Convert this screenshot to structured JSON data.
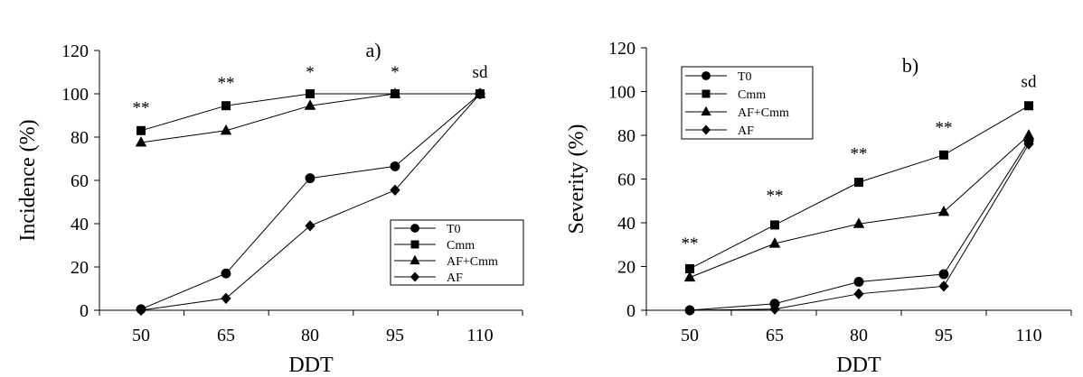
{
  "chart_data": [
    {
      "type": "line",
      "panel_label": "a)",
      "xlabel": "DDT",
      "ylabel": "Incidence (%)",
      "categories": [
        "50",
        "65",
        "80",
        "95",
        "110"
      ],
      "ylim": [
        0,
        120
      ],
      "yticks": [
        "0",
        "20",
        "40",
        "60",
        "80",
        "100",
        "120"
      ],
      "legend_position": "bottom-right",
      "series": [
        {
          "name": "T0",
          "marker": "circle",
          "values": [
            0.5,
            17,
            61,
            66.5,
            100
          ]
        },
        {
          "name": "Cmm",
          "marker": "square",
          "values": [
            83,
            94.5,
            100,
            100,
            100
          ]
        },
        {
          "name": "AF+Cmm",
          "marker": "triangle",
          "values": [
            77.5,
            83,
            94.5,
            100,
            100
          ]
        },
        {
          "name": "AF",
          "marker": "diamond",
          "values": [
            0,
            5.5,
            39,
            55.5,
            100
          ]
        }
      ],
      "annotations": [
        {
          "category": "50",
          "y": 91,
          "text": "**"
        },
        {
          "category": "65",
          "y": 102.5,
          "text": "**"
        },
        {
          "category": "80",
          "y": 107.5,
          "text": "*"
        },
        {
          "category": "95",
          "y": 107.5,
          "text": "*"
        },
        {
          "category": "110",
          "y": 107.5,
          "text": "sd"
        }
      ]
    },
    {
      "type": "line",
      "panel_label": "b)",
      "xlabel": "DDT",
      "ylabel": "Severity (%)",
      "categories": [
        "50",
        "65",
        "80",
        "95",
        "110"
      ],
      "ylim": [
        0,
        120
      ],
      "yticks": [
        "0",
        "20",
        "40",
        "60",
        "80",
        "100",
        "120"
      ],
      "legend_position": "top-left",
      "series": [
        {
          "name": "T0",
          "marker": "circle",
          "values": [
            0,
            3,
            13,
            16.5,
            77.5
          ]
        },
        {
          "name": "Cmm",
          "marker": "square",
          "values": [
            19,
            39,
            58.5,
            71,
            93.5
          ]
        },
        {
          "name": "AF+Cmm",
          "marker": "triangle",
          "values": [
            15,
            30.5,
            39.5,
            45,
            80
          ]
        },
        {
          "name": "AF",
          "marker": "diamond",
          "values": [
            0,
            0.5,
            7.5,
            11,
            76
          ]
        }
      ],
      "annotations": [
        {
          "category": "50",
          "y": 28,
          "text": "**"
        },
        {
          "category": "65",
          "y": 50,
          "text": "**"
        },
        {
          "category": "80",
          "y": 69,
          "text": "**"
        },
        {
          "category": "95",
          "y": 81,
          "text": "**"
        },
        {
          "category": "110",
          "y": 102,
          "text": "sd"
        }
      ]
    }
  ]
}
